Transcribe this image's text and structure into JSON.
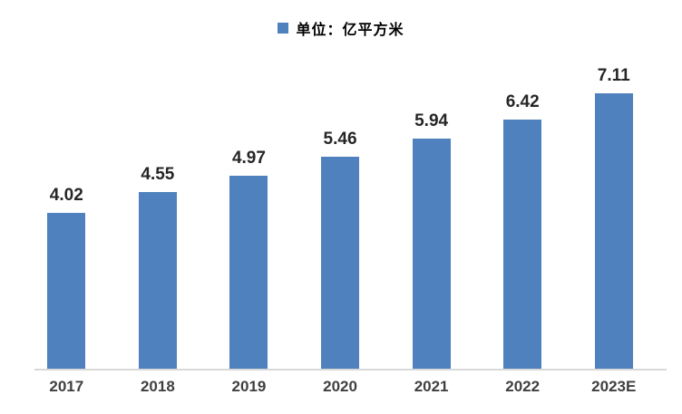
{
  "chart_data": {
    "type": "bar",
    "categories": [
      "2017",
      "2018",
      "2019",
      "2020",
      "2021",
      "2022",
      "2023E"
    ],
    "values": [
      4.02,
      4.55,
      4.97,
      5.46,
      5.94,
      6.42,
      7.11
    ],
    "value_labels": [
      "4.02",
      "4.55",
      "4.97",
      "5.46",
      "5.94",
      "6.42",
      "7.11"
    ],
    "legend": "单位：亿平方米",
    "legend_position": "top-center",
    "title": "",
    "xlabel": "",
    "ylabel": "",
    "ylim": [
      0,
      8.1
    ],
    "grid": false,
    "y_axis_visible": false,
    "bar_color": "#4E81BD",
    "axis_line_color": "#D9D9D9",
    "value_label_color": "#262626",
    "tick_label_color": "#3F3F3F",
    "legend_text_color": "#000000"
  }
}
